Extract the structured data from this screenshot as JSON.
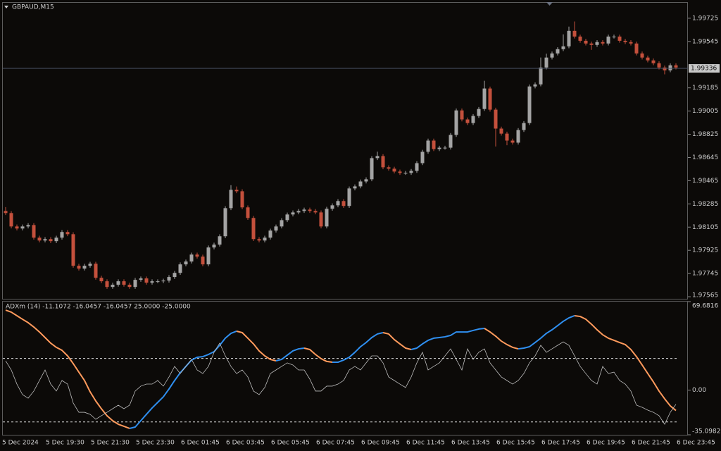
{
  "chart_data": [
    {
      "type": "candlestick",
      "title": "GBPAUD,M15",
      "categories": [
        "5 Dec 2024",
        null,
        null,
        null,
        null,
        null,
        null,
        "5 Dec 19:30",
        null,
        null,
        null,
        null,
        null,
        null,
        null,
        "5 Dec 21:30",
        null,
        null,
        null,
        null,
        null,
        null,
        null,
        "5 Dec 23:30",
        null,
        null,
        null,
        null,
        null,
        null,
        null,
        "6 Dec 01:45",
        null,
        null,
        null,
        null,
        null,
        null,
        null,
        "6 Dec 03:45",
        null,
        null,
        null,
        null,
        null,
        null,
        null,
        "6 Dec 05:45",
        null,
        null,
        null,
        null,
        null,
        null,
        null,
        "6 Dec 07:45",
        null,
        null,
        null,
        null,
        null,
        null,
        null,
        "6 Dec 09:45",
        null,
        null,
        null,
        null,
        null,
        null,
        null,
        "6 Dec 11:45",
        null,
        null,
        null,
        null,
        null,
        null,
        null,
        "6 Dec 13:45",
        null,
        null,
        null,
        null,
        null,
        null,
        null,
        "6 Dec 15:45",
        null,
        null,
        null,
        null,
        null,
        null,
        null,
        "6 Dec 17:45",
        null,
        null,
        null,
        null,
        null,
        null,
        null,
        "6 Dec 19:45",
        null,
        null,
        null,
        null,
        null,
        null,
        null,
        "6 Dec 21:45",
        null,
        null,
        null,
        null,
        null,
        null,
        null,
        "6 Dec 23:45"
      ],
      "open": [
        1.9823,
        1.98214,
        1.9811,
        1.98094,
        1.9811,
        1.98121,
        1.98023,
        1.98001,
        1.98012,
        1.97996,
        1.98023,
        1.98067,
        1.9805,
        1.97805,
        1.97783,
        1.97805,
        1.97821,
        1.97712,
        1.97685,
        1.97641,
        1.97658,
        1.97685,
        1.97658,
        1.97641,
        1.97696,
        1.97707,
        1.97674,
        1.97685,
        1.97685,
        1.9769,
        1.97718,
        1.9775,
        1.97816,
        1.97838,
        1.97892,
        1.97876,
        1.97816,
        1.97947,
        1.97969,
        1.98034,
        1.98252,
        1.98394,
        1.98383,
        1.98258,
        1.98176,
        1.98012,
        1.98001,
        1.98023,
        1.98078,
        1.9811,
        1.98159,
        1.98203,
        1.98219,
        1.9823,
        1.98241,
        1.9823,
        1.98219,
        1.9811,
        1.98247,
        1.98274,
        1.98307,
        1.98269,
        1.98405,
        1.98421,
        1.98459,
        1.98476,
        1.9864,
        1.98656,
        1.98569,
        1.98558,
        1.98536,
        1.98525,
        1.98525,
        1.98541,
        1.98601,
        1.98689,
        1.98776,
        1.9871,
        1.98721,
        1.98721,
        1.9882,
        1.9901,
        1.9894,
        1.98912,
        1.98967,
        1.99021,
        1.9918,
        1.99016,
        1.98869,
        1.9883,
        1.98776,
        1.9876,
        1.98858,
        1.98912,
        1.99196,
        1.99212,
        1.99343,
        1.9942,
        1.99452,
        1.99485,
        1.99507,
        1.99627,
        1.99583,
        1.9955,
        1.99529,
        1.99518,
        1.9954,
        1.99529,
        1.99583,
        1.99583,
        1.9955,
        1.9954,
        1.99529,
        1.99452,
        1.9942,
        1.99398,
        1.99376,
        1.99343,
        1.99321,
        1.9936
      ],
      "high": [
        1.9826,
        1.98229,
        1.98125,
        1.98125,
        1.98136,
        1.98136,
        1.98038,
        1.98027,
        1.98027,
        1.98038,
        1.98082,
        1.98082,
        1.98065,
        1.9782,
        1.9782,
        1.97836,
        1.97836,
        1.97727,
        1.977,
        1.97673,
        1.977,
        1.977,
        1.97673,
        1.97711,
        1.97722,
        1.97722,
        1.977,
        1.977,
        1.97705,
        1.97733,
        1.97765,
        1.97831,
        1.97853,
        1.97907,
        1.97907,
        1.97891,
        1.97962,
        1.97984,
        1.98049,
        1.98267,
        1.9843,
        1.9842,
        1.98398,
        1.98273,
        1.98191,
        1.98027,
        1.98038,
        1.98093,
        1.98125,
        1.98174,
        1.98218,
        1.98234,
        1.98245,
        1.98256,
        1.98256,
        1.98245,
        1.98234,
        1.98262,
        1.98289,
        1.98322,
        1.98322,
        1.9842,
        1.98436,
        1.98474,
        1.98491,
        1.98655,
        1.9869,
        1.98671,
        1.98584,
        1.98573,
        1.98551,
        1.9854,
        1.98556,
        1.98616,
        1.98704,
        1.98791,
        1.98791,
        1.98736,
        1.98736,
        1.98835,
        1.99025,
        1.99025,
        1.98955,
        1.98982,
        1.99036,
        1.9924,
        1.99195,
        1.99031,
        1.98884,
        1.98845,
        1.98791,
        1.98873,
        1.98927,
        1.99211,
        1.99227,
        1.9942,
        1.9945,
        1.99467,
        1.995,
        1.996,
        1.9966,
        1.997,
        1.99598,
        1.99565,
        1.99544,
        1.99555,
        1.99555,
        1.99598,
        1.99598,
        1.99598,
        1.99565,
        1.99555,
        1.99544,
        1.99467,
        1.99435,
        1.99413,
        1.99391,
        1.99358,
        1.99375,
        1.99375
      ],
      "low": [
        1.98199,
        1.98095,
        1.98079,
        1.98079,
        1.98095,
        1.98008,
        1.97986,
        1.97986,
        1.97981,
        1.97981,
        1.98008,
        1.98035,
        1.9779,
        1.97768,
        1.97768,
        1.9779,
        1.97697,
        1.9767,
        1.97626,
        1.97626,
        1.97643,
        1.97643,
        1.97626,
        1.97626,
        1.97681,
        1.97659,
        1.97659,
        1.9767,
        1.9767,
        1.97675,
        1.97703,
        1.97735,
        1.97801,
        1.97823,
        1.97861,
        1.97801,
        1.97801,
        1.97932,
        1.97954,
        1.98019,
        1.98237,
        1.98368,
        1.98243,
        1.98161,
        1.97997,
        1.97986,
        1.97986,
        1.98008,
        1.98063,
        1.98095,
        1.98144,
        1.98188,
        1.98204,
        1.98215,
        1.98215,
        1.98204,
        1.98095,
        1.98095,
        1.98232,
        1.98259,
        1.98254,
        1.98254,
        1.9839,
        1.98406,
        1.98444,
        1.98461,
        1.98625,
        1.98554,
        1.98543,
        1.98521,
        1.9851,
        1.9851,
        1.9851,
        1.98526,
        1.98586,
        1.98674,
        1.98695,
        1.98695,
        1.98706,
        1.98706,
        1.98805,
        1.98925,
        1.98897,
        1.98897,
        1.98952,
        1.99006,
        1.99001,
        1.9873,
        1.98815,
        1.9874,
        1.98745,
        1.98745,
        1.98843,
        1.98897,
        1.99181,
        1.99197,
        1.99328,
        1.99405,
        1.99437,
        1.9947,
        1.99492,
        1.99568,
        1.99535,
        1.99514,
        1.9948,
        1.99503,
        1.99514,
        1.99514,
        1.99568,
        1.99535,
        1.99525,
        1.99514,
        1.99437,
        1.99405,
        1.99383,
        1.99361,
        1.99328,
        1.9929,
        1.99306,
        1.99328
      ],
      "close": [
        1.98214,
        1.9811,
        1.98094,
        1.9811,
        1.98121,
        1.98023,
        1.98001,
        1.98012,
        1.97996,
        1.98023,
        1.98067,
        1.9805,
        1.97805,
        1.97783,
        1.97805,
        1.97821,
        1.97712,
        1.97685,
        1.97641,
        1.97658,
        1.97685,
        1.97658,
        1.97641,
        1.97696,
        1.97707,
        1.97674,
        1.97685,
        1.97685,
        1.9769,
        1.97718,
        1.9775,
        1.97816,
        1.97838,
        1.97892,
        1.97876,
        1.97816,
        1.97947,
        1.97969,
        1.98034,
        1.98252,
        1.98394,
        1.98383,
        1.98258,
        1.98176,
        1.98012,
        1.98001,
        1.98023,
        1.98078,
        1.9811,
        1.98159,
        1.98203,
        1.98219,
        1.9823,
        1.98241,
        1.9823,
        1.98219,
        1.9811,
        1.98247,
        1.98274,
        1.98307,
        1.98269,
        1.98405,
        1.98421,
        1.98459,
        1.98476,
        1.9864,
        1.98656,
        1.98569,
        1.98558,
        1.98536,
        1.98525,
        1.98525,
        1.98541,
        1.98601,
        1.98689,
        1.98776,
        1.9871,
        1.98721,
        1.98721,
        1.9882,
        1.9901,
        1.9894,
        1.98912,
        1.98967,
        1.99021,
        1.9918,
        1.99016,
        1.98869,
        1.9883,
        1.98776,
        1.9876,
        1.98858,
        1.98912,
        1.99196,
        1.99212,
        1.99343,
        1.9942,
        1.99452,
        1.99485,
        1.99507,
        1.99627,
        1.99583,
        1.9955,
        1.99529,
        1.99518,
        1.9954,
        1.99529,
        1.99583,
        1.99583,
        1.9955,
        1.9954,
        1.99529,
        1.99452,
        1.9942,
        1.99398,
        1.99376,
        1.99343,
        1.99321,
        1.9936,
        1.99343
      ],
      "up_color": "#a4a4a4",
      "down_color": "#c4503c",
      "ylim": [
        1.97549,
        1.9985
      ],
      "yticks": [
        1.97565,
        1.97745,
        1.97925,
        1.98105,
        1.98285,
        1.98465,
        1.98645,
        1.98825,
        1.99005,
        1.99185,
        1.99545,
        1.99725
      ],
      "current_price": 1.99336
    },
    {
      "type": "line",
      "title": "ADXm (14) -11.1072 -16.0457 -16.0457 25.0000 -25.0000",
      "series": [
        {
          "up_color": "#2f8ff0",
          "down_color": "#ff9a5c",
          "values": [
            63.0,
            61.4,
            58.6,
            55.8,
            53.1,
            49.7,
            45.8,
            41.4,
            37.0,
            33.7,
            31.4,
            27.0,
            20.9,
            14.2,
            7.6,
            -1.3,
            -8.5,
            -14.6,
            -20.1,
            -24.0,
            -26.8,
            -28.4,
            -30.1,
            -29.0,
            -24.0,
            -19.0,
            -14.0,
            -9.6,
            -5.2,
            0.9,
            7.6,
            13.7,
            18.7,
            23.7,
            25.9,
            26.4,
            28.1,
            30.3,
            35.3,
            40.9,
            44.7,
            46.4,
            45.3,
            40.9,
            36.4,
            30.9,
            27.0,
            24.2,
            23.1,
            24.2,
            27.6,
            30.9,
            32.5,
            33.1,
            32.0,
            28.1,
            24.8,
            22.6,
            22.0,
            22.0,
            23.7,
            25.9,
            29.8,
            34.2,
            37.5,
            41.4,
            44.2,
            45.3,
            44.2,
            39.8,
            36.4,
            33.1,
            32.0,
            33.1,
            36.4,
            39.2,
            40.9,
            41.4,
            42.0,
            43.1,
            45.8,
            45.8,
            45.8,
            47.0,
            48.1,
            48.6,
            45.8,
            42.5,
            38.6,
            35.9,
            33.7,
            32.5,
            33.1,
            34.2,
            37.5,
            40.9,
            44.7,
            47.5,
            50.8,
            54.2,
            56.9,
            58.6,
            58.0,
            55.8,
            51.9,
            47.5,
            43.6,
            40.9,
            39.2,
            37.5,
            35.9,
            32.0,
            26.4,
            19.8,
            13.1,
            6.5,
            -0.7,
            -6.8,
            -12.4,
            -16.0
          ]
        },
        {
          "color": "#bdbdbd",
          "values": [
            23.1,
            15.9,
            4.8,
            -3.5,
            -6.3,
            -0.7,
            7.6,
            15.9,
            4.8,
            -0.7,
            7.6,
            4.8,
            -10.1,
            -17.4,
            -17.4,
            -19.0,
            -22.9,
            -20.1,
            -17.4,
            -14.6,
            -11.8,
            -14.6,
            -11.8,
            -0.7,
            3.2,
            4.8,
            4.8,
            7.6,
            3.2,
            10.4,
            18.7,
            13.1,
            18.7,
            24.2,
            15.9,
            13.1,
            18.7,
            29.8,
            37.0,
            27.0,
            18.7,
            13.1,
            15.9,
            10.4,
            -0.7,
            -3.5,
            2.1,
            13.1,
            15.9,
            18.7,
            21.5,
            19.8,
            15.9,
            15.9,
            8.7,
            -0.7,
            -0.7,
            3.2,
            3.2,
            4.8,
            7.6,
            15.9,
            18.7,
            15.9,
            21.5,
            27.0,
            27.0,
            21.5,
            10.4,
            7.6,
            4.8,
            2.1,
            10.4,
            21.5,
            29.8,
            15.9,
            18.7,
            21.5,
            27.0,
            32.5,
            24.2,
            15.9,
            32.5,
            24.2,
            29.8,
            32.5,
            21.5,
            15.9,
            10.4,
            7.6,
            4.8,
            7.6,
            13.1,
            21.5,
            27.0,
            35.3,
            29.8,
            32.5,
            35.3,
            38.0,
            35.3,
            27.0,
            18.7,
            13.1,
            7.6,
            4.8,
            18.7,
            13.1,
            14.2,
            7.6,
            4.8,
            -0.7,
            -11.8,
            -13.5,
            -15.7,
            -17.4,
            -20.1,
            -26.8,
            -17.4,
            -11.1
          ]
        }
      ],
      "levels": [
        25,
        -25
      ],
      "ylim": [
        -35.0982,
        69.6816
      ],
      "yticks": [
        -35.0982,
        {
          "value": 0,
          "label": "0.00"
        },
        69.6816
      ]
    }
  ]
}
